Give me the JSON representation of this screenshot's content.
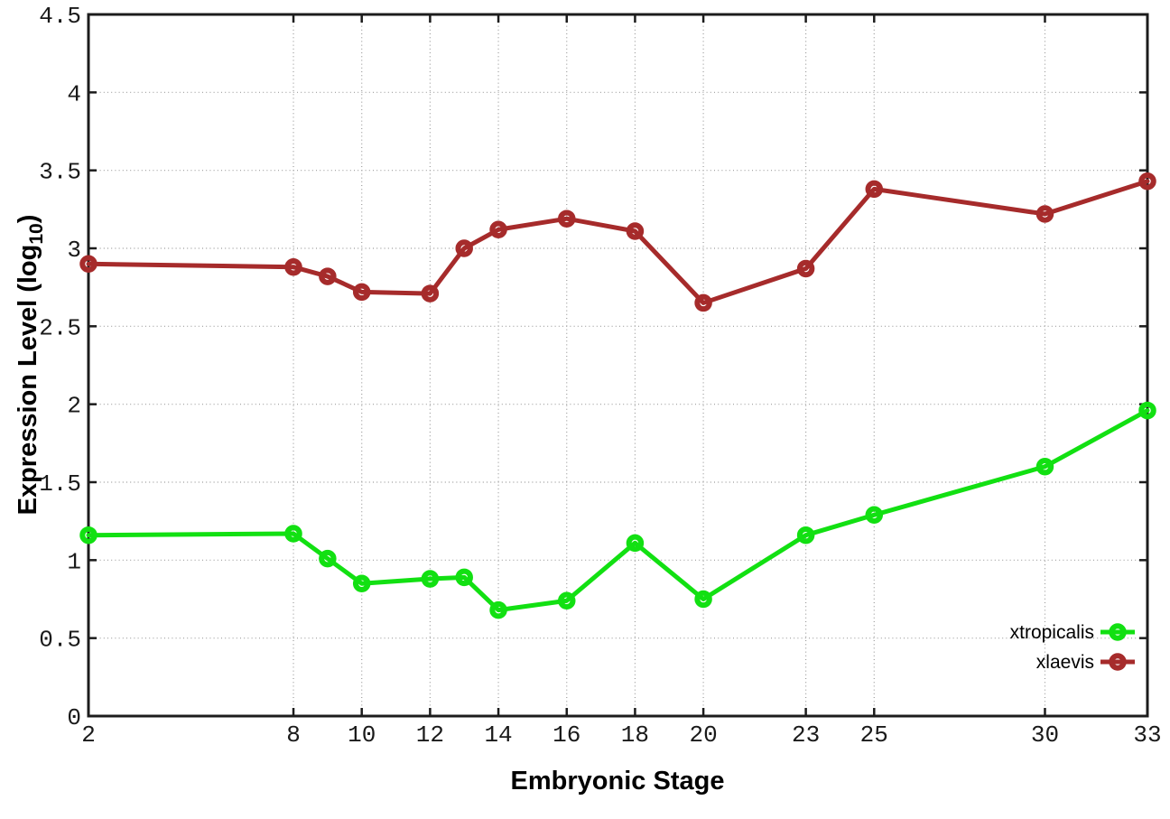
{
  "figure": {
    "background": "#ffffff"
  },
  "chart_data": {
    "type": "line",
    "title": "",
    "xlabel": "Embryonic Stage",
    "ylabel": "Expression Level (log10)",
    "ylabel_parts": {
      "main": "Expression Level (log",
      "sub": "10",
      "end": ")"
    },
    "xlim": [
      2,
      33
    ],
    "ylim": [
      0,
      4.5
    ],
    "grid": true,
    "grid_style": "dotted",
    "legend_position": "inside-bottom-right",
    "axis_color": "#1c1c1c",
    "grid_color": "#9c9c9c",
    "text_color": "#1a1a1a",
    "x_ticks": [
      2,
      8,
      10,
      12,
      14,
      16,
      18,
      20,
      23,
      25,
      30,
      33
    ],
    "x_tick_labels": [
      "2",
      "8",
      "10",
      "12",
      "14",
      "16",
      "18",
      "20",
      "23",
      "25",
      "30",
      "33"
    ],
    "y_ticks": [
      0,
      0.5,
      1,
      1.5,
      2,
      2.5,
      3,
      3.5,
      4,
      4.5
    ],
    "y_tick_labels": [
      "0",
      "0.5",
      "1",
      "1.5",
      "2",
      "2.5",
      "3",
      "3.5",
      "4",
      "4.5"
    ],
    "x": [
      2,
      8,
      9,
      10,
      12,
      13,
      14,
      16,
      18,
      20,
      23,
      25,
      30,
      33
    ],
    "series": [
      {
        "name": "xtropicalis",
        "color": "#12e012",
        "marker": "open-circle",
        "values": [
          1.16,
          1.17,
          1.01,
          0.85,
          0.88,
          0.89,
          0.68,
          0.74,
          1.11,
          0.75,
          1.16,
          1.29,
          1.6,
          1.96
        ]
      },
      {
        "name": "xlaevis",
        "color": "#a62b2b",
        "marker": "open-circle",
        "values": [
          2.9,
          2.88,
          2.82,
          2.72,
          2.71,
          3.0,
          3.12,
          3.19,
          3.11,
          2.65,
          2.87,
          3.38,
          3.22,
          3.43
        ]
      }
    ]
  }
}
